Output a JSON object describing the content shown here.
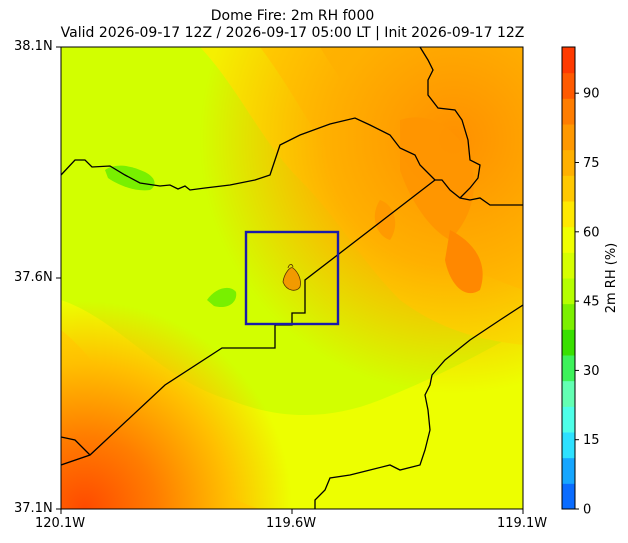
{
  "title": {
    "line1": "Dome Fire: 2m RH f000",
    "line2": "Valid 2026-09-17 12Z / 2026-09-17 05:00 LT | Init 2026-09-17 12Z"
  },
  "map": {
    "lat_ticks": [
      "38.1N",
      "37.6N",
      "37.1N"
    ],
    "lon_ticks": [
      "120.1W",
      "119.6W",
      "119.1W"
    ],
    "extent": {
      "lon": [
        -120.1,
        -119.1
      ],
      "lat": [
        37.1,
        38.1
      ]
    },
    "fire_icon": "flame-icon",
    "box_color": "#1a1aaa"
  },
  "colorbar": {
    "label": "2m RH (%)",
    "ticks": [
      "0",
      "15",
      "30",
      "45",
      "60",
      "75",
      "90"
    ],
    "range": [
      0,
      100
    ],
    "colors": [
      "#0a6cff",
      "#16a6ff",
      "#2ee1ff",
      "#4effe8",
      "#63ffb3",
      "#3df25a",
      "#39e000",
      "#7cf000",
      "#b5ff00",
      "#d6ff00",
      "#f0ff00",
      "#ffe800",
      "#ffc800",
      "#ffb000",
      "#ff9800",
      "#ff7d00",
      "#ff5a00",
      "#ff3a00"
    ]
  }
}
